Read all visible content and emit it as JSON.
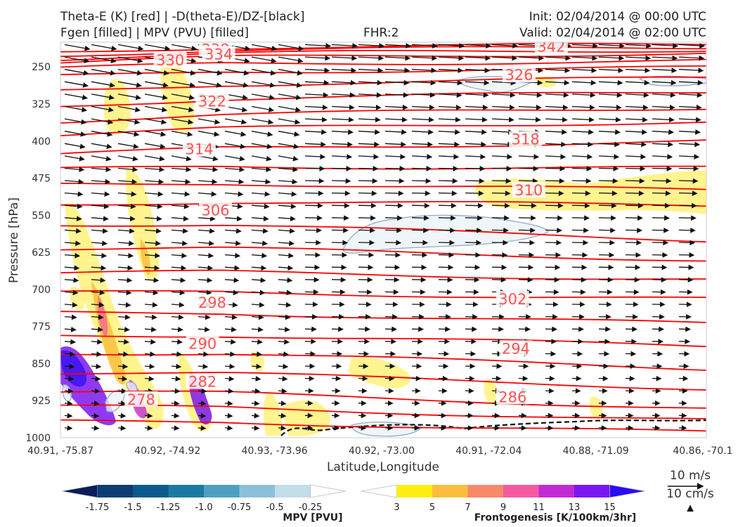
{
  "header": {
    "line1_left": "Theta-E (K) [red] | -D(theta-E)/DZ-[black]",
    "line2_left": "Fgen [filled] | MPV (PVU) [filled]",
    "fhr": "FHR:2",
    "init": "Init: 02/04/2014 @ 00:00 UTC",
    "valid": "Valid: 02/04/2014 @ 02:00 UTC"
  },
  "chart_data": {
    "type": "cross-section",
    "xlabel": "Latitude,Longitude",
    "ylabel": "Pressure [hPa]",
    "x_ticks": [
      "40.91, -75.87",
      "40.92, -74.92",
      "40.93, -73.96",
      "40.92, -73.00",
      "40.91, -72.04",
      "40.88, -71.09",
      "40.86, -70.1"
    ],
    "y_ticks": [
      250,
      325,
      400,
      475,
      550,
      625,
      700,
      775,
      850,
      925,
      1000
    ],
    "ylim": [
      200,
      1000
    ],
    "theta_e_color": "#ff0000",
    "theta_e_labels": [
      {
        "value": "338",
        "x": 0.24,
        "p": 215
      },
      {
        "value": "342",
        "x": 0.76,
        "p": 209
      },
      {
        "value": "334",
        "x": 0.245,
        "p": 225
      },
      {
        "value": "330",
        "x": 0.17,
        "p": 237
      },
      {
        "value": "326",
        "x": 0.71,
        "p": 267
      },
      {
        "value": "322",
        "x": 0.235,
        "p": 320
      },
      {
        "value": "318",
        "x": 0.72,
        "p": 397
      },
      {
        "value": "314",
        "x": 0.215,
        "p": 417
      },
      {
        "value": "310",
        "x": 0.725,
        "p": 500
      },
      {
        "value": "306",
        "x": 0.24,
        "p": 540
      },
      {
        "value": "302",
        "x": 0.7,
        "p": 720
      },
      {
        "value": "298",
        "x": 0.235,
        "p": 727
      },
      {
        "value": "294",
        "x": 0.705,
        "p": 820
      },
      {
        "value": "290",
        "x": 0.22,
        "p": 810
      },
      {
        "value": "286",
        "x": 0.7,
        "p": 918
      },
      {
        "value": "282",
        "x": 0.22,
        "p": 887
      },
      {
        "value": "278",
        "x": 0.125,
        "p": 923
      }
    ],
    "mpv_colorbar": {
      "label": "MPV [PVU]",
      "ticks": [
        "-1.75",
        "-1.5",
        "-1.25",
        "-1.0",
        "-0.75",
        "-0.5",
        "-0.25"
      ],
      "colors": [
        "#0b1e5b",
        "#0e3d73",
        "#0d5a8c",
        "#1a7aa3",
        "#4da0c2",
        "#8cc0d8",
        "#c3dde9",
        "#ffffff"
      ]
    },
    "fgen_colorbar": {
      "label": "Frontogenesis [K/100km/3hr]",
      "ticks": [
        "3",
        "5",
        "7",
        "9",
        "11",
        "13",
        "15"
      ],
      "colors": [
        "#ffffff",
        "#ffee10",
        "#fbbd3c",
        "#f9886a",
        "#f45aa0",
        "#c22ad4",
        "#7a18f2",
        "#2a0cf4"
      ]
    },
    "vector_key": {
      "horizontal": "10 m/s",
      "vertical": "10 cm/s"
    }
  }
}
